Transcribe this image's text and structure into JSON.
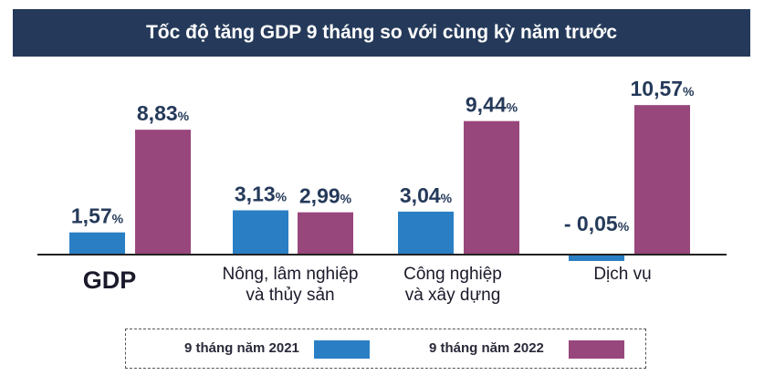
{
  "chart_data": {
    "type": "bar",
    "title": "Tốc độ tăng GDP 9 tháng so với cùng kỳ năm trước",
    "categories": [
      [
        "GDP"
      ],
      [
        "Nông, lâm nghiệp",
        "và thủy sản"
      ],
      [
        "Công nghiệp",
        "và xây dựng"
      ],
      [
        "Dịch vụ"
      ]
    ],
    "series": [
      {
        "name": "9 tháng năm 2021",
        "color": "#2a7fc4",
        "values": [
          1.57,
          3.13,
          3.04,
          -0.05
        ],
        "labels": [
          "1,57",
          "3,13",
          "3,04",
          "- 0,05"
        ]
      },
      {
        "name": "9 tháng năm 2022",
        "color": "#98477c",
        "values": [
          8.83,
          2.99,
          9.44,
          10.57
        ],
        "labels": [
          "8,83",
          "2,99",
          "9,44",
          "10,57"
        ]
      }
    ],
    "unit": "%",
    "legend_position": "bottom",
    "grid": false
  }
}
